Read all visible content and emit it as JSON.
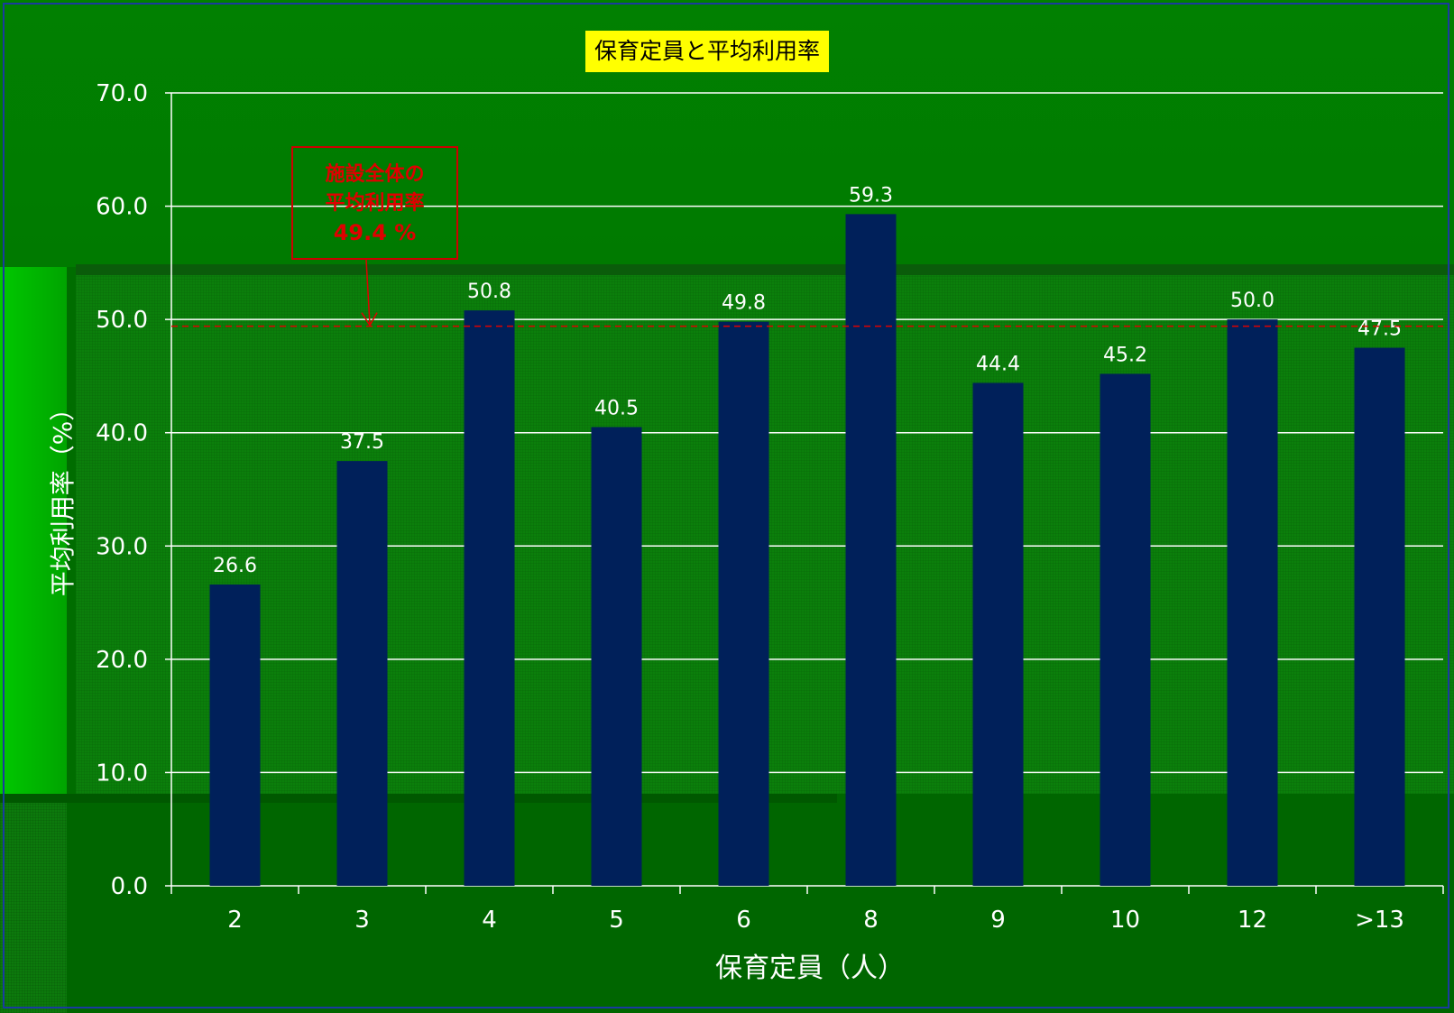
{
  "chart_data": {
    "type": "bar",
    "title": "保育定員と平均利用率",
    "xlabel": "保育定員（人）",
    "ylabel": "平均利用率（%）",
    "categories": [
      "2",
      "3",
      "4",
      "5",
      "6",
      "8",
      "9",
      "10",
      "12",
      ">13"
    ],
    "values": [
      26.6,
      37.5,
      50.8,
      40.5,
      49.8,
      59.3,
      44.4,
      45.2,
      50.0,
      47.5
    ],
    "value_labels": [
      "26.6",
      "37.5",
      "50.8",
      "40.5",
      "49.8",
      "59.3",
      "44.4",
      "45.2",
      "50.0",
      "47.5"
    ],
    "ylim": [
      0,
      70
    ],
    "yticks": [
      "0.0",
      "10.0",
      "20.0",
      "30.0",
      "40.0",
      "50.0",
      "60.0",
      "70.0"
    ],
    "grid": true,
    "bar_color": "#00205a",
    "reference_line": {
      "value": 49.4,
      "color": "#e00000",
      "style": "dashed"
    },
    "annotation": {
      "line1": "施設全体の",
      "line2": "平均利用率",
      "value": "49.4 %"
    }
  }
}
